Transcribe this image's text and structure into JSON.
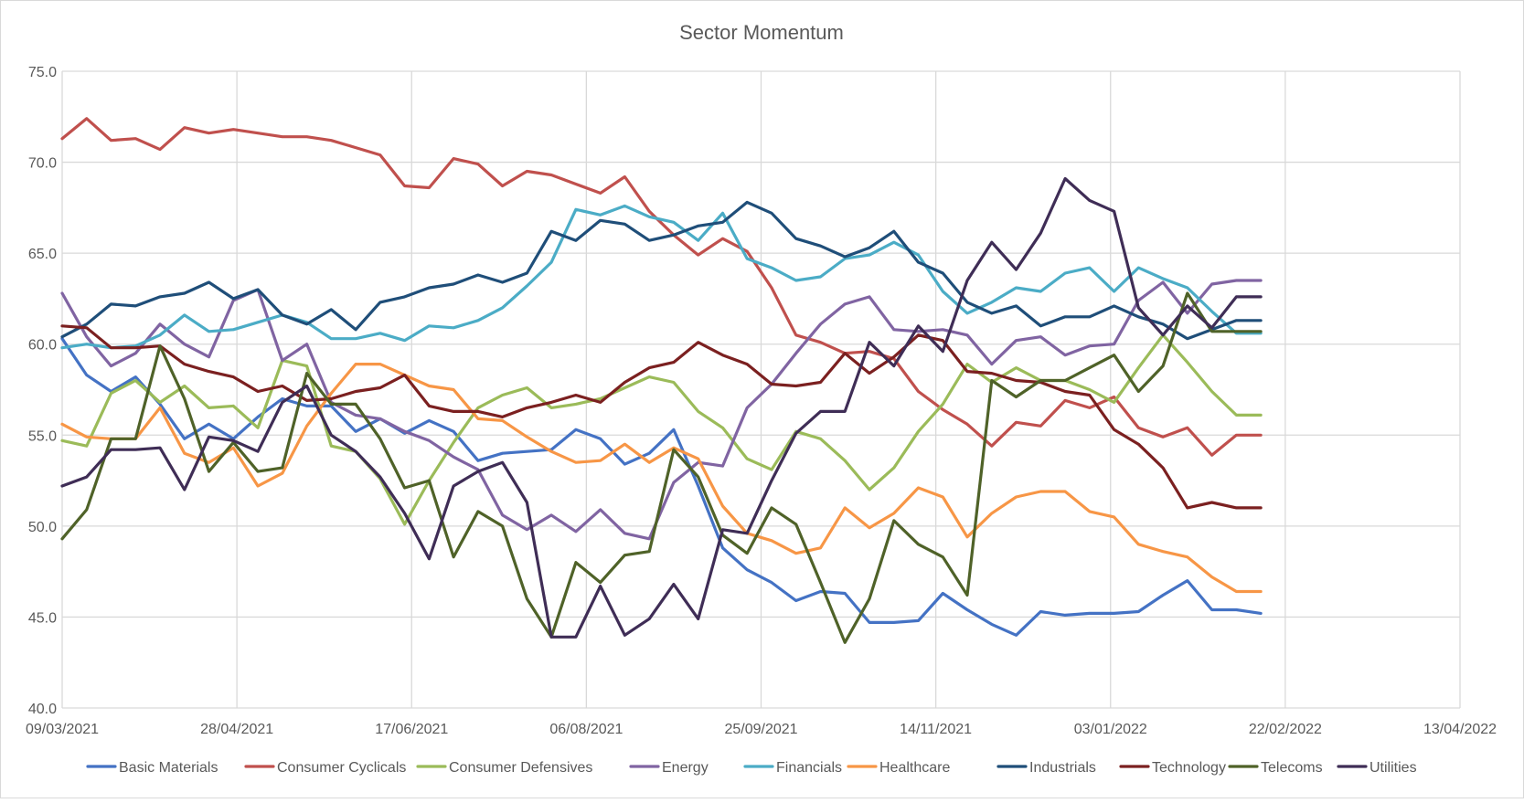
{
  "chart_data": {
    "type": "line",
    "title": "Sector Momentum",
    "xlabel": "",
    "ylabel": "",
    "xlim": [
      "09/03/2021",
      "13/04/2022"
    ],
    "ylim": [
      40,
      75
    ],
    "y_ticks": [
      "40.0",
      "45.0",
      "50.0",
      "55.0",
      "60.0",
      "65.0",
      "70.0",
      "75.0"
    ],
    "x_ticks": [
      "09/03/2021",
      "28/04/2021",
      "17/06/2021",
      "06/08/2021",
      "25/09/2021",
      "14/11/2021",
      "03/01/2022",
      "22/02/2022",
      "13/04/2022"
    ],
    "grid": true,
    "legend_position": "bottom",
    "x_start": "09/03/2021",
    "x_step_days": 7,
    "series": [
      {
        "name": "Basic Materials",
        "color": "#4472c4",
        "values": [
          60.3,
          58.3,
          57.4,
          58.2,
          56.7,
          54.8,
          55.6,
          54.8,
          56.0,
          57.0,
          56.6,
          56.6,
          55.2,
          55.9,
          55.1,
          55.8,
          55.2,
          53.6,
          54.0,
          54.1,
          54.2,
          55.3,
          54.8,
          53.4,
          54.0,
          55.3,
          52.2,
          48.8,
          47.6,
          46.9,
          45.9,
          46.4,
          46.3,
          44.7,
          44.7,
          44.8,
          46.3,
          45.4,
          44.6,
          44.0,
          45.3,
          45.1,
          45.2,
          45.2,
          45.3,
          46.2,
          47.0,
          45.4,
          45.4,
          45.2
        ]
      },
      {
        "name": "Consumer Cyclicals",
        "color": "#c0504d",
        "values": [
          71.3,
          72.4,
          71.2,
          71.3,
          70.7,
          71.9,
          71.6,
          71.8,
          71.6,
          71.4,
          71.4,
          71.2,
          70.8,
          70.4,
          68.7,
          68.6,
          70.2,
          69.9,
          68.7,
          69.5,
          69.3,
          68.8,
          68.3,
          69.2,
          67.3,
          66.0,
          64.9,
          65.8,
          65.1,
          63.1,
          60.5,
          60.1,
          59.5,
          59.6,
          59.2,
          57.4,
          56.4,
          55.6,
          54.4,
          55.7,
          55.5,
          56.9,
          56.5,
          57.1,
          55.4,
          54.9,
          55.4,
          53.9,
          55.0,
          55.0
        ]
      },
      {
        "name": "Consumer Defensives",
        "color": "#9bbb59",
        "values": [
          54.7,
          54.4,
          57.3,
          58.0,
          56.8,
          57.7,
          56.5,
          56.6,
          55.4,
          59.1,
          58.8,
          54.4,
          54.1,
          52.6,
          50.1,
          52.5,
          54.6,
          56.5,
          57.2,
          57.6,
          56.5,
          56.7,
          57.0,
          57.6,
          58.2,
          57.9,
          56.3,
          55.4,
          53.7,
          53.1,
          55.2,
          54.8,
          53.6,
          52.0,
          53.2,
          55.2,
          56.7,
          58.9,
          57.9,
          58.7,
          58.0,
          58.0,
          57.5,
          56.8,
          58.7,
          60.5,
          59.0,
          57.4,
          56.1,
          56.1
        ]
      },
      {
        "name": "Energy",
        "color": "#8064a2",
        "values": [
          62.8,
          60.4,
          58.8,
          59.5,
          61.1,
          60.0,
          59.3,
          62.4,
          63.0,
          59.1,
          60.0,
          56.8,
          56.1,
          55.9,
          55.2,
          54.7,
          53.8,
          53.1,
          50.6,
          49.8,
          50.6,
          49.7,
          50.9,
          49.6,
          49.3,
          52.4,
          53.5,
          53.3,
          56.5,
          57.8,
          59.5,
          61.1,
          62.2,
          62.6,
          60.8,
          60.7,
          60.8,
          60.5,
          58.9,
          60.2,
          60.4,
          59.4,
          59.9,
          60.0,
          62.4,
          63.4,
          61.7,
          63.3,
          63.5,
          63.5
        ]
      },
      {
        "name": "Financials",
        "color": "#4bacc6",
        "values": [
          59.8,
          60.0,
          59.8,
          59.9,
          60.5,
          61.6,
          60.7,
          60.8,
          61.2,
          61.6,
          61.2,
          60.3,
          60.3,
          60.6,
          60.2,
          61.0,
          60.9,
          61.3,
          62.0,
          63.2,
          64.5,
          67.4,
          67.1,
          67.6,
          67.0,
          66.7,
          65.7,
          67.2,
          64.7,
          64.2,
          63.5,
          63.7,
          64.7,
          64.9,
          65.6,
          64.9,
          62.9,
          61.7,
          62.3,
          63.1,
          62.9,
          63.9,
          64.2,
          62.9,
          64.2,
          63.6,
          63.1,
          61.8,
          60.6,
          60.6
        ]
      },
      {
        "name": "Healthcare",
        "color": "#f79646",
        "values": [
          55.6,
          54.9,
          54.8,
          54.8,
          56.5,
          54.0,
          53.5,
          54.3,
          52.2,
          52.9,
          55.5,
          57.3,
          58.9,
          58.9,
          58.3,
          57.7,
          57.5,
          55.9,
          55.8,
          54.9,
          54.1,
          53.5,
          53.6,
          54.5,
          53.5,
          54.3,
          53.7,
          51.1,
          49.6,
          49.2,
          48.5,
          48.8,
          51.0,
          49.9,
          50.7,
          52.1,
          51.6,
          49.4,
          50.7,
          51.6,
          51.9,
          51.9,
          50.8,
          50.5,
          49.0,
          48.6,
          48.3,
          47.2,
          46.4,
          46.4
        ]
      },
      {
        "name": "Industrials",
        "color": "#1f4e79",
        "values": [
          60.4,
          61.1,
          62.2,
          62.1,
          62.6,
          62.8,
          63.4,
          62.5,
          63.0,
          61.6,
          61.1,
          61.9,
          60.8,
          62.3,
          62.6,
          63.1,
          63.3,
          63.8,
          63.4,
          63.9,
          66.2,
          65.7,
          66.8,
          66.6,
          65.7,
          66.0,
          66.5,
          66.7,
          67.8,
          67.2,
          65.8,
          65.4,
          64.8,
          65.3,
          66.2,
          64.5,
          63.9,
          62.3,
          61.7,
          62.1,
          61.0,
          61.5,
          61.5,
          62.1,
          61.5,
          61.1,
          60.3,
          60.8,
          61.3,
          61.3
        ]
      },
      {
        "name": "Technology",
        "color": "#7b2020",
        "values": [
          61.0,
          60.9,
          59.8,
          59.8,
          59.9,
          58.9,
          58.5,
          58.2,
          57.4,
          57.7,
          56.9,
          57.0,
          57.4,
          57.6,
          58.3,
          56.6,
          56.3,
          56.3,
          56.0,
          56.5,
          56.8,
          57.2,
          56.8,
          57.9,
          58.7,
          59.0,
          60.1,
          59.4,
          58.9,
          57.8,
          57.7,
          57.9,
          59.5,
          58.4,
          59.3,
          60.5,
          60.2,
          58.5,
          58.4,
          58.0,
          57.9,
          57.4,
          57.2,
          55.3,
          54.5,
          53.2,
          51.0,
          51.3,
          51.0,
          51.0
        ]
      },
      {
        "name": "Telecoms",
        "color": "#4f6228",
        "values": [
          49.3,
          50.9,
          54.8,
          54.8,
          59.9,
          57.0,
          53.0,
          54.6,
          53.0,
          53.2,
          58.4,
          56.7,
          56.7,
          54.8,
          52.1,
          52.5,
          48.3,
          50.8,
          50.0,
          46.0,
          43.9,
          48.0,
          46.9,
          48.4,
          48.6,
          54.2,
          52.7,
          49.5,
          48.5,
          51.0,
          50.1,
          46.9,
          43.6,
          46.0,
          50.3,
          49.0,
          48.3,
          46.2,
          58.0,
          57.1,
          58.0,
          58.0,
          58.7,
          59.4,
          57.4,
          58.8,
          62.8,
          60.7,
          60.7,
          60.7
        ]
      },
      {
        "name": "Utilities",
        "color": "#3f2d56",
        "values": [
          52.2,
          52.7,
          54.2,
          54.2,
          54.3,
          52.0,
          54.9,
          54.7,
          54.1,
          56.8,
          57.7,
          55.0,
          54.1,
          52.7,
          50.7,
          48.2,
          52.2,
          53.0,
          53.5,
          51.3,
          43.9,
          43.9,
          46.7,
          44.0,
          44.9,
          46.8,
          44.9,
          49.8,
          49.6,
          52.5,
          55.1,
          56.3,
          56.3,
          60.1,
          58.8,
          61.0,
          59.6,
          63.5,
          65.6,
          64.1,
          66.1,
          69.1,
          67.9,
          67.3,
          62.0,
          60.5,
          62.1,
          60.9,
          62.6,
          62.6
        ]
      }
    ]
  }
}
